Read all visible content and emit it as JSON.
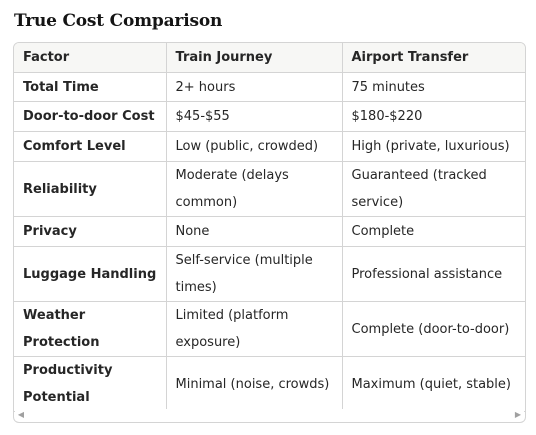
{
  "title": "True Cost Comparison",
  "table": {
    "headers": [
      "Factor",
      "Train Journey",
      "Airport Transfer"
    ],
    "rows": [
      [
        "Total Time",
        "2+ hours",
        "75 minutes"
      ],
      [
        "Door-to-door Cost",
        "$45-$55",
        "$180-$220"
      ],
      [
        "Comfort Level",
        "Low (public, crowded)",
        "High (private, luxurious)"
      ],
      [
        "Reliability",
        "Moderate (delays common)",
        "Guaranteed (tracked service)"
      ],
      [
        "Privacy",
        "None",
        "Complete"
      ],
      [
        "Luggage Handling",
        "Self-service (multiple times)",
        "Professional assistance"
      ],
      [
        "Weather Protection",
        "Limited (platform exposure)",
        "Complete (door-to-door)"
      ],
      [
        "Productivity Potential",
        "Minimal (noise, crowds)",
        "Maximum (quiet, stable)"
      ]
    ]
  },
  "scrollbar": {
    "left_arrow": "◀",
    "right_arrow": "▶"
  }
}
